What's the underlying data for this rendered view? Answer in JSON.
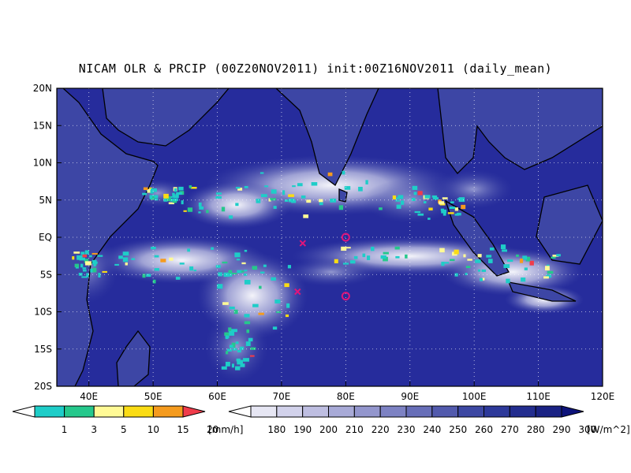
{
  "title": "NICAM OLR & PRCIP (00Z20NOV2011) init:00Z16NOV2011 (daily_mean)",
  "map": {
    "lon_range": [
      35,
      120
    ],
    "lat_range": [
      -20,
      20
    ],
    "lon_ticks": [
      "40E",
      "50E",
      "60E",
      "70E",
      "80E",
      "90E",
      "100E",
      "110E",
      "120E"
    ],
    "lat_ticks": [
      "20N",
      "15N",
      "10N",
      "5N",
      "EQ",
      "5S",
      "10S",
      "15S",
      "20S"
    ],
    "grid": "dotted",
    "ocean_color": "#262c9c"
  },
  "markers": [
    {
      "type": "x",
      "lon": 73.3,
      "lat": -0.8,
      "color": "#e0157a"
    },
    {
      "type": "x",
      "lon": 72.5,
      "lat": -7.3,
      "color": "#e0157a"
    },
    {
      "type": "circle",
      "lon": 80.0,
      "lat": 0.0,
      "color": "#e0157a"
    },
    {
      "type": "circle",
      "lon": 80.0,
      "lat": -7.9,
      "color": "#e0157a"
    }
  ],
  "precip_legend": {
    "labels": [
      "1",
      "3",
      "5",
      "10",
      "15",
      "20"
    ],
    "unit": "[mm/h]",
    "colors": [
      "#ffffff",
      "#1ecdc8",
      "#25c88c",
      "#fffa96",
      "#fadc14",
      "#f59b1e",
      "#f03c4b"
    ]
  },
  "olr_legend": {
    "labels": [
      "180",
      "190",
      "200",
      "210",
      "220",
      "230",
      "240",
      "250",
      "260",
      "270",
      "280",
      "290",
      "300"
    ],
    "unit": "[W/m^2]",
    "colors": [
      "#ffffff",
      "#e6e6f3",
      "#d2d2eb",
      "#bebee1",
      "#a8aad7",
      "#9396cd",
      "#7d82c3",
      "#676eb8",
      "#525aad",
      "#3d48a3",
      "#2d399a",
      "#232d8f",
      "#1a2284",
      "#0d137a"
    ]
  }
}
